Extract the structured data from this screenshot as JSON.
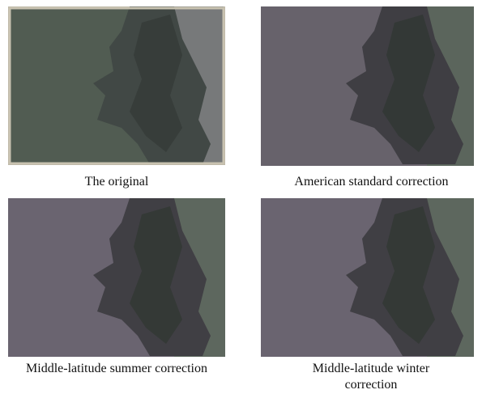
{
  "figure": {
    "panels": [
      {
        "caption": "The original"
      },
      {
        "caption": "American standard correction"
      },
      {
        "caption": "Middle-latitude summer correction"
      },
      {
        "caption": "Middle-latitude winter correction"
      }
    ]
  }
}
